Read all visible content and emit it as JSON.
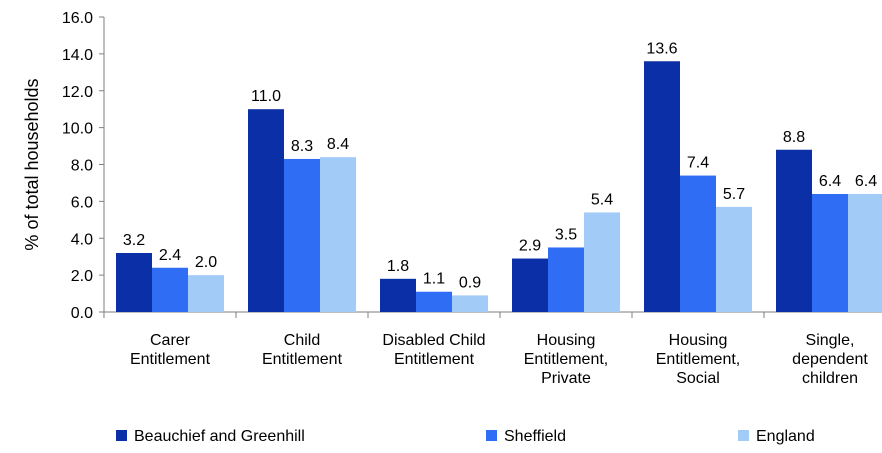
{
  "chart_data": {
    "type": "bar",
    "categories": [
      [
        "Carer",
        "Entitlement"
      ],
      [
        "Child",
        "Entitlement"
      ],
      [
        "Disabled Child",
        "Entitlement"
      ],
      [
        "Housing",
        "Entitlement,",
        "Private"
      ],
      [
        "Housing",
        "Entitlement,",
        "Social"
      ],
      [
        "Single,",
        "dependent",
        "children"
      ]
    ],
    "series": [
      {
        "name": "Beauchief and Greenhill",
        "color": "#0b2fa6",
        "values": [
          3.2,
          11.0,
          1.8,
          2.9,
          13.6,
          8.8
        ]
      },
      {
        "name": "Sheffield",
        "color": "#2f6df5",
        "values": [
          2.4,
          8.3,
          1.1,
          3.5,
          7.4,
          6.4
        ]
      },
      {
        "name": "England",
        "color": "#a3cbf7",
        "values": [
          2.0,
          8.4,
          0.9,
          5.4,
          5.7,
          6.4
        ]
      }
    ],
    "title": "",
    "xlabel": "",
    "ylabel": "% of total households",
    "ylim": [
      0,
      16
    ],
    "yticks": [
      "0.0",
      "2.0",
      "4.0",
      "6.0",
      "8.0",
      "10.0",
      "12.0",
      "14.0",
      "16.0"
    ],
    "grid": false,
    "legend_position": "bottom"
  }
}
